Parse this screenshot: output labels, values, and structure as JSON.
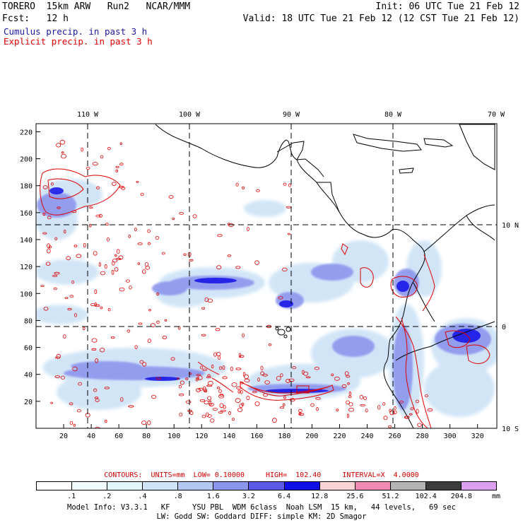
{
  "header": {
    "model": "TORERO  15km ARW   Run2   NCAR/MMM",
    "init": "Init: 06 UTC Tue 21 Feb 12",
    "fcst": "Fcst:   12 h",
    "valid": "Valid: 18 UTC Tue 21 Feb 12 (12 CST Tue 21 Feb 12)"
  },
  "fields": {
    "cumulus": "Cumulus precip. in past 3 h",
    "explicit": "Explicit precip. in past 3 h",
    "cumulus_color": "#1a1aa0",
    "explicit_color": "#e00000"
  },
  "map": {
    "lon_labels": [
      "110 W",
      "100 W",
      "90 W",
      "80 W",
      "70 W"
    ],
    "lat_labels": [
      "10 N",
      "0",
      "10 S"
    ],
    "y_ticks": [
      "20",
      "40",
      "60",
      "80",
      "100",
      "120",
      "140",
      "160",
      "180",
      "200",
      "220"
    ],
    "x_ticks": [
      "20",
      "40",
      "60",
      "80",
      "100",
      "120",
      "140",
      "160",
      "180",
      "200",
      "220",
      "240",
      "260",
      "280",
      "300",
      "320"
    ],
    "x_range": [
      0,
      334
    ],
    "y_range": [
      0,
      226
    ]
  },
  "contours_info": "CONTOURS:  UNITS=mm  LOW= 0.10000     HIGH=  102.40     INTERVAL=X  4.0000",
  "colorbar": {
    "unit": "mm",
    "labels": [
      ".1",
      ".2",
      ".4",
      ".8",
      "1.6",
      "3.2",
      "6.4",
      "12.8",
      "25.6",
      "51.2",
      "102.4",
      "204.8"
    ],
    "colors": [
      "#ffffff",
      "#f2fbfd",
      "#e0f6fb",
      "#cfe4f7",
      "#b3c9f3",
      "#8c96ee",
      "#5a5ae6",
      "#1010e6",
      "#fad4d4",
      "#f08cb4",
      "#b4b4b4",
      "#3c3c3c",
      "#dca0f0"
    ]
  },
  "model_info": {
    "line1": "Model Info: V3.3.1   KF     YSU PBL  WDM 6class  Noah LSM  15 km,   44 levels,   69 sec",
    "line2": "LW: Godd SW: Goddard DIFF: simple KM: 2D Smagor"
  }
}
